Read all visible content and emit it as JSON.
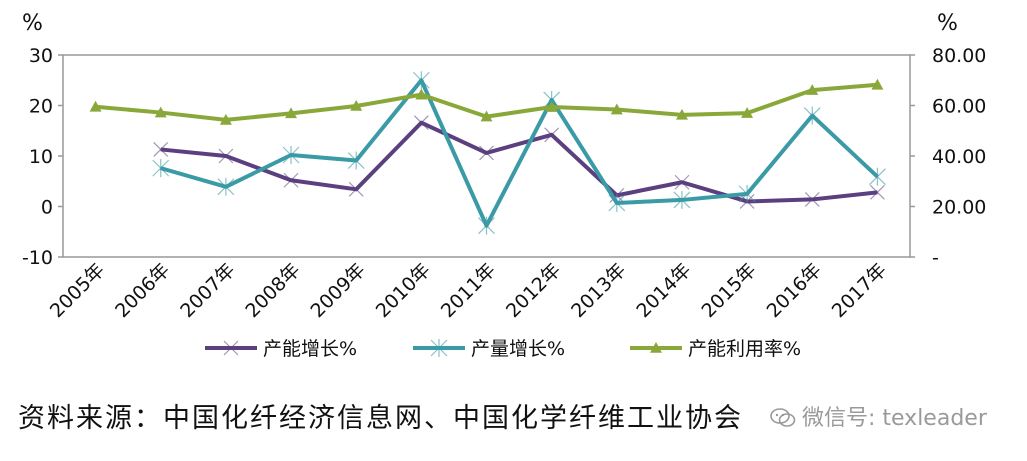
{
  "chart_data": {
    "type": "line",
    "x": [
      "2005年",
      "2006年",
      "2007年",
      "2008年",
      "2009年",
      "2010年",
      "2011年",
      "2012年",
      "2013年",
      "2014年",
      "2015年",
      "2016年",
      "2017年"
    ],
    "y_left": {
      "unit": "%",
      "min": -10,
      "max": 30,
      "ticks": [
        "-10",
        "0",
        "10",
        "20",
        "30"
      ]
    },
    "y_right": {
      "unit": "%",
      "min": 0,
      "max": 80,
      "ticks": [
        "-",
        "20.00",
        "40.00",
        "60.00",
        "80.00"
      ]
    },
    "series": [
      {
        "name": "产能增长%",
        "axis": "left",
        "color": "#5b3f7e",
        "marker": "x",
        "values": [
          null,
          11.3,
          10.0,
          5.2,
          3.4,
          16.6,
          10.6,
          14.2,
          2.2,
          4.8,
          1.0,
          1.4,
          2.8
        ]
      },
      {
        "name": "产量增长%",
        "axis": "left",
        "color": "#3a9aa6",
        "marker": "star",
        "values": [
          null,
          7.6,
          3.9,
          10.2,
          9.1,
          25.0,
          -3.8,
          21.1,
          0.7,
          1.3,
          2.5,
          18.0,
          5.9
        ]
      },
      {
        "name": "产能利用率%",
        "axis": "right",
        "color": "#8aa83a",
        "marker": "triangle",
        "values": [
          59.5,
          57.2,
          54.3,
          56.9,
          59.8,
          64.3,
          55.6,
          59.4,
          58.4,
          56.3,
          57.0,
          66.1,
          68.2
        ]
      }
    ],
    "grid": false,
    "legend": "bottom"
  },
  "source_text": "资料来源：中国化纤经济信息网、中国化学纤维工业协会",
  "watermark": {
    "text": "微信号: texleader",
    "icon": "wechat-icon"
  }
}
